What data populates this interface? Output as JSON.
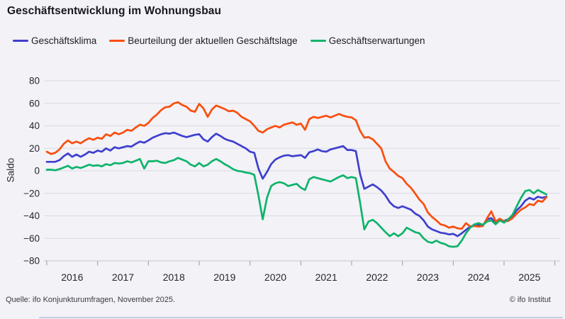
{
  "title": "Geschäftsentwicklung im Wohnungsbau",
  "footer": {
    "source": "Quelle: ifo Konjunkturumfragen, November 2025.",
    "copyright": "© ifo Institut"
  },
  "chart_data": {
    "type": "line",
    "title": "Geschäftsentwicklung im Wohnungsbau",
    "xlabel": "",
    "ylabel": "Saldo",
    "ylim": [
      -80,
      80
    ],
    "grid": "horizontal",
    "legend_position": "top",
    "frequency": "monthly",
    "x_start": "2016-01",
    "x_end": "2025-11",
    "y_ticks": [
      {
        "value": 80,
        "label": "80"
      },
      {
        "value": 60,
        "label": "60"
      },
      {
        "value": 40,
        "label": "40"
      },
      {
        "value": 20,
        "label": "20"
      },
      {
        "value": 0,
        "label": "0"
      },
      {
        "value": -20,
        "label": "−20"
      },
      {
        "value": -40,
        "label": "−40"
      },
      {
        "value": -60,
        "label": "−60"
      },
      {
        "value": -80,
        "label": "−80"
      }
    ],
    "x_labels": [
      "2016",
      "2017",
      "2018",
      "2019",
      "2020",
      "2021",
      "2022",
      "2023",
      "2024",
      "2025"
    ],
    "series": [
      {
        "name": "Geschäftsklima",
        "color": "#3f3fcd",
        "values": [
          8,
          8,
          8,
          9.5,
          13,
          15.5,
          12.5,
          14.5,
          12.5,
          14.5,
          17,
          16,
          18,
          17,
          20,
          18,
          21,
          20,
          21,
          22,
          21.5,
          24,
          26,
          25,
          27,
          29.5,
          31,
          32.5,
          33.5,
          33,
          34,
          32.5,
          31,
          30,
          31,
          32,
          32.5,
          28,
          26,
          30,
          33,
          31,
          28.5,
          27,
          26,
          24,
          22,
          20,
          17,
          16,
          2,
          -7,
          -1,
          6,
          10,
          12,
          13.5,
          14,
          13,
          13.5,
          14,
          11.5,
          16.5,
          17.5,
          19,
          17.5,
          17,
          19,
          20,
          21,
          22,
          18.5,
          18.5,
          17.5,
          -3,
          -16,
          -14,
          -12,
          -14.5,
          -17.5,
          -22,
          -28,
          -31.5,
          -33,
          -31.5,
          -33,
          -34.5,
          -38,
          -40,
          -44,
          -49.5,
          -52,
          -53.5,
          -55,
          -55.5,
          -56.5,
          -56,
          -58,
          -55.5,
          -52.5,
          -49.5,
          -48.5,
          -48,
          -48.5,
          -43,
          -42,
          -46.5,
          -44,
          -44.5,
          -43,
          -40,
          -35,
          -31.5,
          -26.5,
          -24,
          -25.5,
          -23,
          -24,
          -23
        ]
      },
      {
        "name": "Beurteilung der aktuellen Geschäftslage",
        "color": "#fa4e0d",
        "values": [
          17,
          15,
          16,
          19,
          24,
          27,
          24.5,
          26,
          24.5,
          27,
          29,
          27.5,
          29.5,
          28.5,
          32.5,
          31,
          34,
          32.5,
          34,
          36.5,
          35.5,
          38.5,
          41,
          40,
          42.5,
          47,
          50,
          54,
          56.5,
          57,
          60,
          61,
          58.5,
          57,
          53.5,
          52.5,
          59.5,
          55.5,
          48,
          54.5,
          58,
          56.5,
          55,
          53,
          53.5,
          51.5,
          48,
          46,
          44,
          40,
          35.5,
          34,
          37,
          38.5,
          40,
          38.5,
          41,
          42,
          43,
          41,
          42,
          36.5,
          46,
          48,
          47,
          48,
          49,
          47.5,
          49,
          50.5,
          49,
          48,
          47.5,
          45,
          35.5,
          29.5,
          30,
          28,
          24,
          20,
          8.5,
          2,
          -1,
          -4.5,
          -6.5,
          -11.5,
          -15,
          -20,
          -25.5,
          -29.5,
          -37,
          -41,
          -44,
          -47.5,
          -48.5,
          -50.5,
          -49.5,
          -51,
          -51.5,
          -46.5,
          -49.5,
          -49,
          -49.5,
          -49,
          -42,
          -36,
          -45,
          -42.5,
          -45,
          -44.5,
          -42,
          -38,
          -34.5,
          -32.5,
          -29.5,
          -30.5,
          -26.5,
          -27.5,
          -23.5
        ]
      },
      {
        "name": "Geschäftserwartungen",
        "color": "#0fb36a",
        "values": [
          1,
          1,
          0.5,
          1.5,
          3,
          4.5,
          2,
          3.5,
          2.5,
          4,
          5.5,
          4.5,
          5,
          4,
          6,
          5,
          7,
          6.5,
          7,
          8.5,
          7.5,
          9,
          10.5,
          2,
          8.5,
          8.5,
          9,
          7.5,
          7,
          8.5,
          9.5,
          11.5,
          10,
          8.5,
          5.5,
          4,
          7,
          4,
          5.5,
          8.5,
          10.5,
          8.5,
          6,
          4,
          1.5,
          0,
          -0.5,
          -1.5,
          -2,
          -3.5,
          -22,
          -43,
          -24,
          -13.5,
          -11,
          -10,
          -11,
          -13.5,
          -12.5,
          -11.5,
          -15,
          -17,
          -7.5,
          -5.5,
          -6.5,
          -7.5,
          -8.5,
          -9.5,
          -7.5,
          -5.5,
          -4,
          -6.5,
          -5.5,
          -6.5,
          -28.5,
          -52,
          -45,
          -43.5,
          -46.5,
          -50.5,
          -54.5,
          -58,
          -55.5,
          -58,
          -55.5,
          -50.5,
          -52.5,
          -54.5,
          -55.5,
          -60,
          -63,
          -64,
          -62,
          -64,
          -65,
          -67,
          -67.5,
          -67,
          -62,
          -55.5,
          -50.5,
          -47.5,
          -46.5,
          -48,
          -45,
          -44,
          -47.5,
          -44,
          -46,
          -43,
          -39,
          -31.5,
          -24,
          -18,
          -17,
          -20,
          -17,
          -19,
          -21
        ]
      }
    ]
  }
}
